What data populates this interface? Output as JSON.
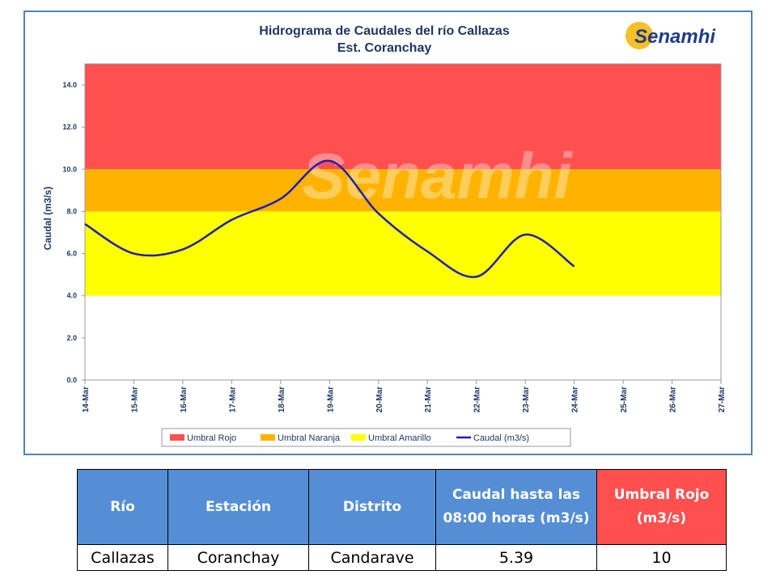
{
  "chart_data": {
    "type": "line",
    "title": "Hidrograma de Caudales del río Callazas",
    "subtitle": "Est. Coranchay",
    "logo": "Senamhi",
    "ylabel": "Caudal (m3/s)",
    "categories": [
      "14-Mar",
      "15-Mar",
      "16-Mar",
      "17-Mar",
      "18-Mar",
      "19-Mar",
      "20-Mar",
      "21-Mar",
      "22-Mar",
      "23-Mar",
      "24-Mar",
      "25-Mar",
      "26-Mar",
      "27-Mar"
    ],
    "bands": [
      {
        "name": "Umbral Rojo",
        "color": "#ff5050",
        "value": 10
      },
      {
        "name": "Umbral Naranja",
        "color": "#ffb300",
        "value": 8
      },
      {
        "name": "Umbral Amarillo",
        "color": "#ffff00",
        "value": 4
      }
    ],
    "series": [
      {
        "name": "Caudal (m3/s)",
        "color": "#1f1fb4",
        "values": [
          7.4,
          6.0,
          6.2,
          7.6,
          8.6,
          10.4,
          7.9,
          6.1,
          4.9,
          6.9,
          5.39,
          null,
          null,
          null
        ]
      }
    ],
    "ylim": [
      0,
      15
    ],
    "yticks": [
      {
        "value": 0,
        "label": "0.0"
      },
      {
        "value": 2,
        "label": "2.0"
      },
      {
        "value": 4,
        "label": "4.0"
      },
      {
        "value": 6,
        "label": "6.0"
      },
      {
        "value": 8,
        "label": "8.0"
      },
      {
        "value": 10,
        "label": "10.0"
      },
      {
        "value": 12,
        "label": "12.0"
      },
      {
        "value": 14,
        "label": "14.0"
      }
    ]
  },
  "table": {
    "header": [
      "Río",
      "Estación",
      "Distrito",
      "Caudal hasta las 08:00 horas (m3/s)",
      "Umbral  Rojo (m3/s)"
    ],
    "rows": [
      [
        "Callazas",
        "Coranchay",
        "Candarave",
        5.39,
        10
      ]
    ]
  }
}
